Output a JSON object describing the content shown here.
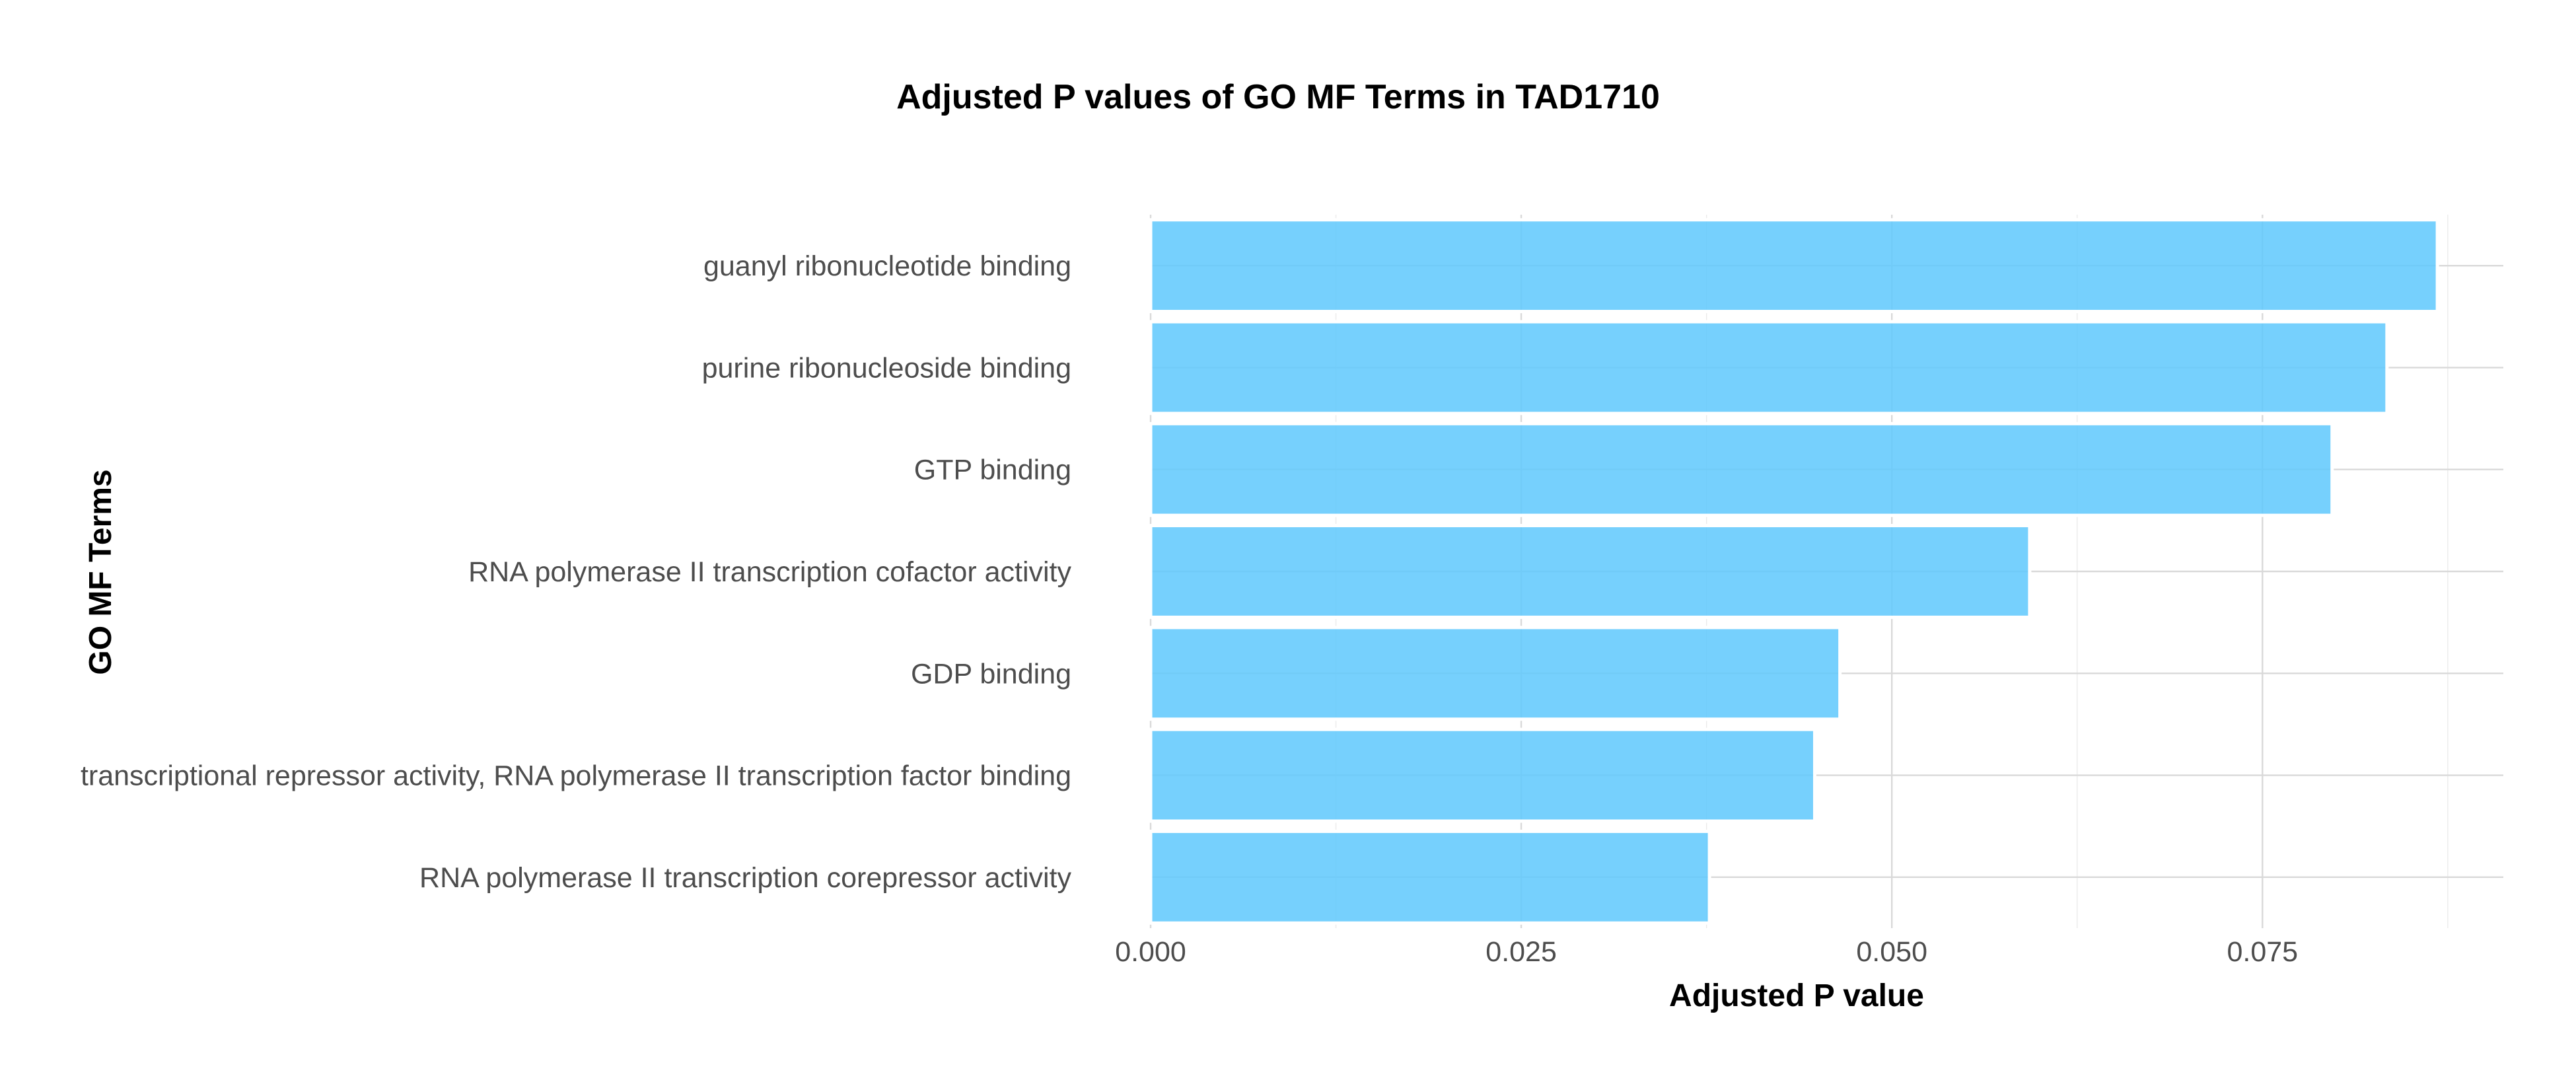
{
  "chart_data": {
    "type": "bar",
    "orientation": "horizontal",
    "title": "Adjusted P values of GO MF Terms in TAD1710",
    "xlabel": "Adjusted P value",
    "ylabel": "GO MF Terms",
    "categories": [
      "guanyl ribonucleotide binding",
      "purine ribonucleoside binding",
      "GTP binding",
      "RNA polymerase II transcription cofactor activity",
      "GDP binding",
      "transcriptional repressor activity, RNA polymerase II transcription factor binding",
      "RNA polymerase II transcription corepressor activity"
    ],
    "values": [
      0.0868,
      0.0834,
      0.0797,
      0.0593,
      0.0465,
      0.0448,
      0.0377
    ],
    "xlim": [
      0,
      0.09125
    ],
    "xticks": [
      0.0,
      0.025,
      0.05,
      0.075
    ],
    "xtick_labels": [
      "0.000",
      "0.025",
      "0.050",
      "0.075"
    ],
    "bar_color": "#5ec8fd",
    "grid": true,
    "legend": "none"
  }
}
